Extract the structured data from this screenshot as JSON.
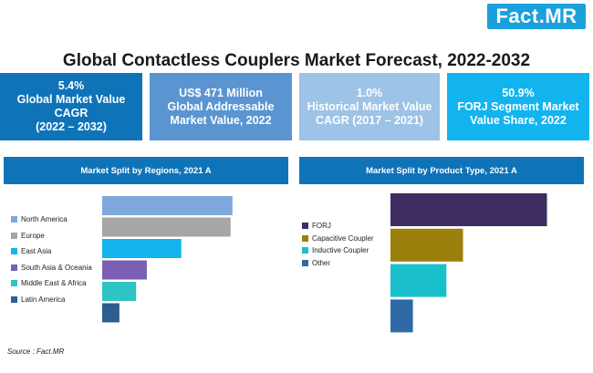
{
  "logo": "Fact.MR",
  "title": "Global Contactless Couplers Market Forecast, 2022-2032",
  "stats": [
    {
      "lines": [
        "5.4%",
        "Global Market Value",
        "CAGR",
        "(2022 – 2032)"
      ],
      "color": "#0f73b8"
    },
    {
      "lines": [
        "US$ 471 Million",
        "Global Addressable",
        "Market Value, 2022"
      ],
      "color": "#5b95d1"
    },
    {
      "lines": [
        "1.0%",
        "Historical Market Value",
        "CAGR (2017 – 2021)"
      ],
      "color": "#9dc3e6"
    },
    {
      "lines": [
        "50.9%",
        "FORJ Segment Market",
        "Value Share, 2022"
      ],
      "color": "#11b4ee"
    }
  ],
  "chart_data": [
    {
      "type": "bar",
      "title": "Market Split by Regions, 2021 A",
      "categories": [
        "North America",
        "Europe",
        "East Asia",
        "South Asia & Oceania",
        "Middle East & Africa",
        "Latin America"
      ],
      "values": [
        28.0,
        27.6,
        17.0,
        9.6,
        7.3,
        3.7
      ],
      "colors": [
        "#7fa9dc",
        "#a6a6a6",
        "#14b4ee",
        "#7b60b5",
        "#2ec4c4",
        "#2e5d8f"
      ]
    },
    {
      "type": "bar",
      "title": "Market Split by Product Type, 2021 A",
      "categories": [
        "FORJ",
        "Capacitive Coupler",
        "Inductive Coupler",
        "Other"
      ],
      "values": [
        50.9,
        23.6,
        18.2,
        7.3
      ],
      "colors": [
        "#3d2d60",
        "#9b7f0c",
        "#19c0cc",
        "#2e6aa6"
      ]
    }
  ],
  "source": "Source : Fact.MR"
}
